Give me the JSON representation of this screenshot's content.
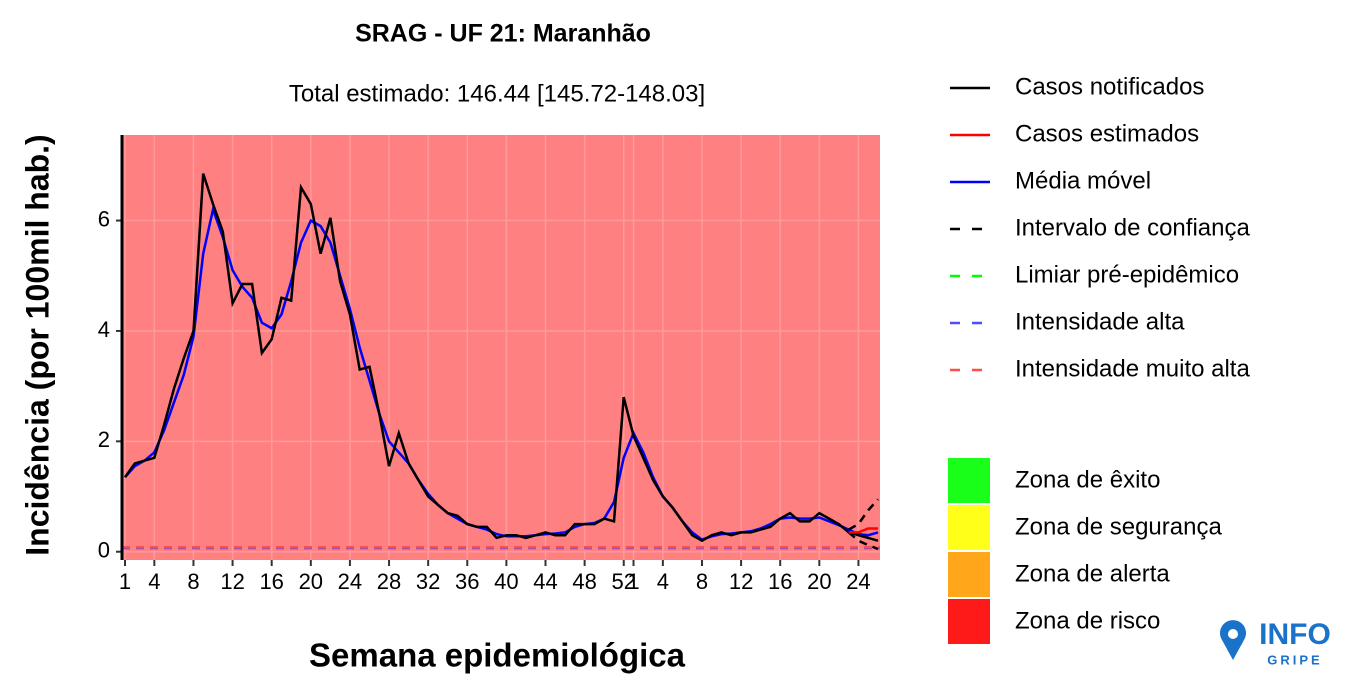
{
  "chart_data": {
    "type": "line",
    "title": "SRAG - UF 21: Maranhão",
    "subtitle": "Total estimado: 146.44 [145.72-148.03]",
    "x_label": "Semana epidemiológica",
    "y_label": "Incidência (por 100mil hab.)",
    "background_color": "#ff8080",
    "grid": true,
    "ylim": [
      -0.15,
      7.55
    ],
    "yticks": [
      0,
      2,
      4,
      6
    ],
    "categories": [
      "1",
      null,
      null,
      "4",
      null,
      null,
      null,
      "8",
      null,
      null,
      null,
      "12",
      null,
      null,
      null,
      "16",
      null,
      null,
      null,
      "20",
      null,
      null,
      null,
      "24",
      null,
      null,
      null,
      "28",
      null,
      null,
      null,
      "32",
      null,
      null,
      null,
      "36",
      null,
      null,
      null,
      "40",
      null,
      null,
      null,
      "44",
      null,
      null,
      null,
      "48",
      null,
      null,
      null,
      "52",
      "1",
      null,
      null,
      "4",
      null,
      null,
      null,
      "8",
      null,
      null,
      null,
      "12",
      null,
      null,
      null,
      "16",
      null,
      null,
      null,
      "20",
      null,
      null,
      null,
      "24",
      null,
      null
    ],
    "series": [
      {
        "name": "Casos notificados",
        "color": "#000000",
        "values": [
          1.35,
          1.6,
          1.65,
          1.7,
          2.3,
          2.95,
          3.5,
          4.0,
          6.85,
          6.3,
          5.8,
          4.5,
          4.85,
          4.85,
          3.6,
          3.85,
          4.6,
          4.55,
          6.6,
          6.3,
          5.4,
          6.05,
          4.9,
          4.3,
          3.3,
          3.35,
          2.5,
          1.55,
          2.15,
          1.6,
          1.3,
          1.0,
          0.85,
          0.7,
          0.65,
          0.5,
          0.45,
          0.45,
          0.25,
          0.3,
          0.3,
          0.25,
          0.3,
          0.35,
          0.3,
          0.3,
          0.5,
          0.5,
          0.5,
          0.6,
          0.55,
          2.8,
          2.1,
          1.7,
          1.3,
          1.0,
          0.8,
          0.55,
          0.3,
          0.2,
          0.3,
          0.35,
          0.3,
          0.35,
          0.35,
          0.4,
          0.45,
          0.6,
          0.7,
          0.55,
          0.55,
          0.7,
          0.6,
          0.5,
          0.35,
          0.3,
          0.25,
          0.2
        ]
      },
      {
        "name": "Casos estimados",
        "color": "#ff0000",
        "values": [
          null,
          null,
          null,
          null,
          null,
          null,
          null,
          null,
          null,
          null,
          null,
          null,
          null,
          null,
          null,
          null,
          null,
          null,
          null,
          null,
          null,
          null,
          null,
          null,
          null,
          null,
          null,
          null,
          null,
          null,
          null,
          null,
          null,
          null,
          null,
          null,
          null,
          null,
          null,
          null,
          null,
          null,
          null,
          null,
          null,
          null,
          null,
          null,
          null,
          null,
          null,
          null,
          null,
          null,
          null,
          null,
          null,
          null,
          null,
          null,
          null,
          null,
          null,
          null,
          null,
          null,
          null,
          null,
          null,
          null,
          null,
          null,
          null,
          null,
          0.35,
          0.35,
          0.42,
          0.42
        ]
      },
      {
        "name": "Média móvel",
        "color": "#0000ff",
        "values": [
          1.35,
          1.55,
          1.65,
          1.8,
          2.2,
          2.7,
          3.2,
          3.9,
          5.4,
          6.2,
          5.7,
          5.1,
          4.8,
          4.6,
          4.15,
          4.05,
          4.3,
          4.9,
          5.6,
          6.0,
          5.9,
          5.6,
          5.0,
          4.4,
          3.7,
          3.1,
          2.5,
          2.0,
          1.8,
          1.6,
          1.3,
          1.05,
          0.85,
          0.7,
          0.6,
          0.5,
          0.45,
          0.4,
          0.32,
          0.28,
          0.28,
          0.28,
          0.3,
          0.32,
          0.33,
          0.35,
          0.45,
          0.5,
          0.52,
          0.6,
          0.9,
          1.7,
          2.15,
          1.8,
          1.35,
          1.0,
          0.8,
          0.55,
          0.35,
          0.22,
          0.28,
          0.32,
          0.33,
          0.35,
          0.37,
          0.42,
          0.5,
          0.6,
          0.62,
          0.6,
          0.6,
          0.62,
          0.55,
          0.48,
          0.4,
          0.32,
          0.3,
          0.35
        ]
      },
      {
        "name": "Intervalo de confiança",
        "color": "#000000",
        "dashed": true,
        "upper": [
          null,
          null,
          null,
          null,
          null,
          null,
          null,
          null,
          null,
          null,
          null,
          null,
          null,
          null,
          null,
          null,
          null,
          null,
          null,
          null,
          null,
          null,
          null,
          null,
          null,
          null,
          null,
          null,
          null,
          null,
          null,
          null,
          null,
          null,
          null,
          null,
          null,
          null,
          null,
          null,
          null,
          null,
          null,
          null,
          null,
          null,
          null,
          null,
          null,
          null,
          null,
          null,
          null,
          null,
          null,
          null,
          null,
          null,
          null,
          null,
          null,
          null,
          null,
          null,
          null,
          null,
          null,
          null,
          null,
          null,
          null,
          null,
          null,
          null,
          0.4,
          0.5,
          0.75,
          0.95
        ],
        "lower": [
          null,
          null,
          null,
          null,
          null,
          null,
          null,
          null,
          null,
          null,
          null,
          null,
          null,
          null,
          null,
          null,
          null,
          null,
          null,
          null,
          null,
          null,
          null,
          null,
          null,
          null,
          null,
          null,
          null,
          null,
          null,
          null,
          null,
          null,
          null,
          null,
          null,
          null,
          null,
          null,
          null,
          null,
          null,
          null,
          null,
          null,
          null,
          null,
          null,
          null,
          null,
          null,
          null,
          null,
          null,
          null,
          null,
          null,
          null,
          null,
          null,
          null,
          null,
          null,
          null,
          null,
          null,
          null,
          null,
          null,
          null,
          null,
          null,
          null,
          0.35,
          0.2,
          0.12,
          0.05
        ]
      },
      {
        "name": "Limiar pré-epidêmico",
        "color": "#00ff00",
        "dashed": true,
        "value": 0.06
      },
      {
        "name": "Intensidade alta",
        "color": "#4d4dff",
        "dashed": true,
        "value": 0.07
      },
      {
        "name": "Intensidade muito alta",
        "color": "#ff4d4d",
        "dashed": true,
        "value": 0.08
      }
    ],
    "zones": [
      {
        "name": "Zona de êxito",
        "color": "#1aff1a"
      },
      {
        "name": "Zona de segurança",
        "color": "#ffff1a"
      },
      {
        "name": "Zona de alerta",
        "color": "#ffa61a"
      },
      {
        "name": "Zona de risco",
        "color": "#ff1a1a"
      }
    ],
    "logo": {
      "top": "INFO",
      "bottom": "GRIPE"
    }
  }
}
